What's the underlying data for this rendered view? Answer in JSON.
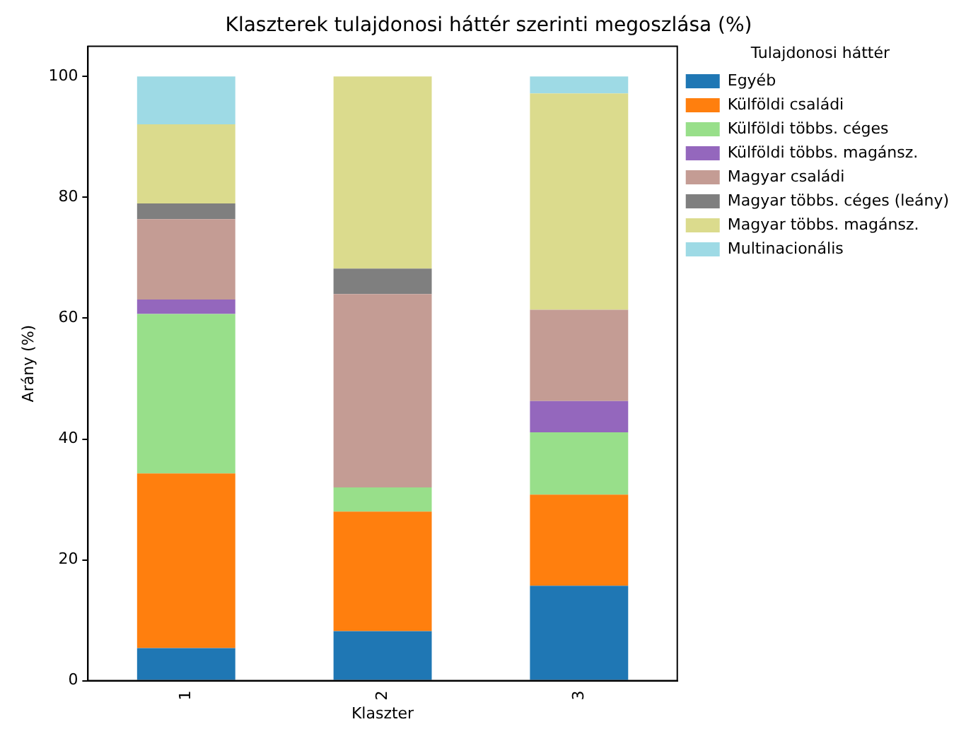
{
  "chart_data": {
    "type": "bar",
    "stacked": true,
    "title": "Klaszterek tulajdonosi háttér szerinti megoszlása (%)",
    "xlabel": "Klaszter",
    "ylabel": "Arány (%)",
    "legend_title": "Tulajdonosi háttér",
    "legend": "right",
    "categories": [
      "1",
      "2",
      "3"
    ],
    "ylim": [
      0,
      105
    ],
    "yticks": [
      0,
      20,
      40,
      60,
      80,
      100
    ],
    "grid": false,
    "series": [
      {
        "name": "Egyéb",
        "color": "#1f77b4",
        "values": [
          5.4,
          8.2,
          15.7
        ]
      },
      {
        "name": "Külföldi családi",
        "color": "#ff7f0e",
        "values": [
          28.9,
          19.8,
          15.1
        ]
      },
      {
        "name": "Külföldi többs. céges",
        "color": "#98df8a",
        "values": [
          26.4,
          4.0,
          10.3
        ]
      },
      {
        "name": "Külföldi többs. magánsz.",
        "color": "#9467bd",
        "values": [
          2.4,
          0,
          5.2
        ]
      },
      {
        "name": "Magyar családi",
        "color": "#c49c94",
        "values": [
          13.3,
          32.0,
          15.1
        ]
      },
      {
        "name": "Magyar többs. céges (leány)",
        "color": "#7f7f7f",
        "values": [
          2.6,
          4.2,
          0
        ]
      },
      {
        "name": "Magyar többs. magánsz.",
        "color": "#dbdb8d",
        "values": [
          13.1,
          31.8,
          35.8
        ]
      },
      {
        "name": "Multinacionális",
        "color": "#9edae5",
        "values": [
          7.9,
          0,
          2.8
        ]
      }
    ]
  }
}
